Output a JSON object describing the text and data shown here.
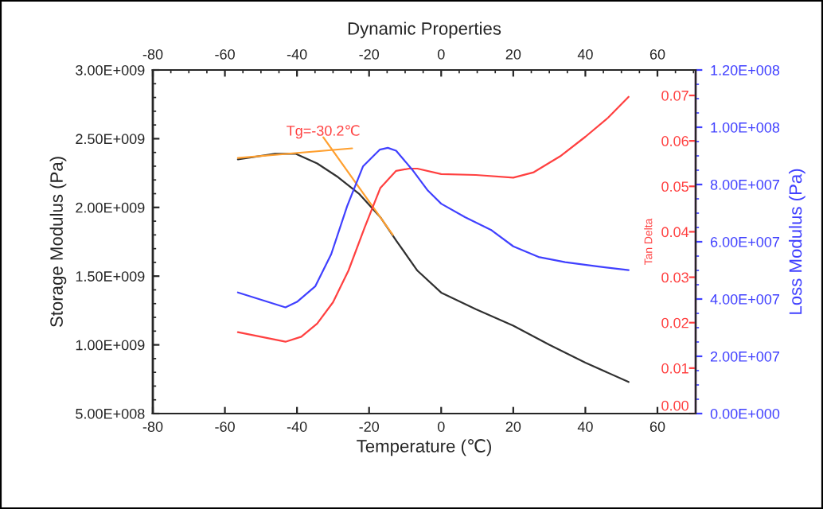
{
  "chart_data": {
    "type": "line",
    "title": "Dynamic Properties",
    "xlabel": "Temperature (℃)",
    "ylabel": "Storage Modulus (Pa)",
    "y2label": "Tan Delta",
    "y3label": "Loss Modulus (Pa)",
    "xlim": [
      -80,
      70.6
    ],
    "xticks": [
      -80,
      -60,
      -40,
      -20,
      0,
      20,
      40,
      60
    ],
    "x2lim": [
      -80,
      70.6
    ],
    "x2ticks": [
      -80,
      -60,
      -40,
      -20,
      0,
      20,
      40,
      60
    ],
    "ylim": [
      500000000,
      3000000000
    ],
    "yticks": [
      {
        "value": 500000000,
        "label": "5.00E+008"
      },
      {
        "value": 1000000000,
        "label": "1.00E+009"
      },
      {
        "value": 1500000000,
        "label": "1.50E+009"
      },
      {
        "value": 2000000000,
        "label": "2.00E+009"
      },
      {
        "value": 2500000000,
        "label": "2.50E+009"
      },
      {
        "value": 3000000000,
        "label": "3.00E+009"
      }
    ],
    "y2lim": [
      0,
      0.0756
    ],
    "y2ticks": [
      {
        "value": 0,
        "label": "0.00"
      },
      {
        "value": 0.01,
        "label": "0.01"
      },
      {
        "value": 0.02,
        "label": "0.02"
      },
      {
        "value": 0.03,
        "label": "0.03"
      },
      {
        "value": 0.04,
        "label": "0.04"
      },
      {
        "value": 0.05,
        "label": "0.05"
      },
      {
        "value": 0.06,
        "label": "0.06"
      },
      {
        "value": 0.07,
        "label": "0.07"
      }
    ],
    "y3lim": [
      0,
      120000000
    ],
    "y3ticks": [
      {
        "value": 0,
        "label": "0.00E+000"
      },
      {
        "value": 20000000,
        "label": "2.00E+007"
      },
      {
        "value": 40000000,
        "label": "4.00E+007"
      },
      {
        "value": 60000000,
        "label": "6.00E+007"
      },
      {
        "value": 80000000,
        "label": "8.00E+007"
      },
      {
        "value": 100000000,
        "label": "1.00E+008"
      },
      {
        "value": 120000000,
        "label": "1.20E+008"
      }
    ],
    "grid": false,
    "legend": false,
    "marker": "none",
    "line_style": "solid",
    "annotations": [
      {
        "text": "Tg=-30.2℃",
        "x": -32.7,
        "y": 2550000000
      }
    ],
    "series": [
      {
        "color": "#303030",
        "axis": "y",
        "x": [
          -56.4,
          -46.1,
          -40.3,
          -34.4,
          -28.6,
          -22.8,
          -16.9,
          -12.5,
          -6.6,
          0,
          9.6,
          20,
          30,
          40,
          52
        ],
        "values": [
          2350000000,
          2390000000,
          2390000000,
          2320000000,
          2220000000,
          2100000000,
          1930000000,
          1760000000,
          1540000000,
          1380000000,
          1260000000,
          1140000000,
          1000000000,
          870000000,
          730000000
        ]
      },
      {
        "color": "#ff4040",
        "axis": "y2",
        "x": [
          -56.4,
          -43.2,
          -38.8,
          -34.4,
          -30,
          -25.7,
          -21.3,
          -16.9,
          -12.5,
          -8.9,
          -6.6,
          0,
          9.6,
          20,
          25.7,
          33,
          40,
          46.3,
          52
        ],
        "values": [
          0.0179,
          0.0158,
          0.0169,
          0.0198,
          0.0245,
          0.0315,
          0.0408,
          0.0496,
          0.0534,
          0.0539,
          0.0539,
          0.0527,
          0.0525,
          0.0519,
          0.0531,
          0.0566,
          0.0609,
          0.0651,
          0.0697
        ]
      },
      {
        "color": "#4040ff",
        "axis": "y3",
        "x": [
          -56.4,
          -43.2,
          -40,
          -34.9,
          -30.5,
          -26.1,
          -21.7,
          -17,
          -14.8,
          -12.5,
          -8.1,
          -3.7,
          0,
          6.6,
          14,
          20,
          27,
          34.4,
          43.2,
          52
        ],
        "values": [
          42300000,
          37100000,
          39000000,
          44500000,
          55700000,
          72400000,
          86300000,
          92200000,
          92800000,
          91800000,
          85300000,
          77900000,
          73300000,
          68600000,
          64000000,
          58400000,
          54700000,
          52900000,
          51400000,
          50100000
        ]
      },
      {
        "color": "#ffa030",
        "axis": "y",
        "x": [
          -56.4,
          -24.7
        ],
        "values": [
          2360000000,
          2430000000
        ]
      },
      {
        "color": "#ffa030",
        "axis": "y",
        "x": [
          -32.7,
          -13.4
        ],
        "values": [
          2510000000,
          1800000000
        ]
      }
    ]
  }
}
